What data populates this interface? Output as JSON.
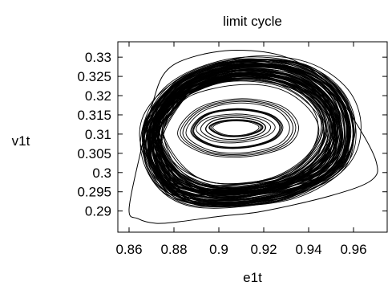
{
  "chart_data": {
    "type": "line",
    "title": "limit cycle",
    "xlabel": "e1t",
    "ylabel": "v1t",
    "xlim": [
      0.855,
      0.975
    ],
    "ylim": [
      0.2845,
      0.334
    ],
    "x_ticks": [
      0.86,
      0.88,
      0.9,
      0.92,
      0.94,
      0.96
    ],
    "x_tick_labels": [
      "0.86",
      "0.88",
      "0.9",
      "0.92",
      "0.94",
      "0.96"
    ],
    "y_ticks": [
      0.29,
      0.295,
      0.3,
      0.305,
      0.31,
      0.315,
      0.32,
      0.325,
      0.33
    ],
    "y_tick_labels": [
      "0.29",
      "0.295",
      "0.3",
      "0.305",
      "0.31",
      "0.315",
      "0.32",
      "0.325",
      "0.33"
    ],
    "grid": false,
    "series": [
      {
        "color": "#000000",
        "outer_orbit": [
          [
            0.86,
            0.2905
          ],
          [
            0.864,
            0.288
          ],
          [
            0.872,
            0.2868
          ],
          [
            0.882,
            0.2872
          ],
          [
            0.9,
            0.2886
          ],
          [
            0.92,
            0.29
          ],
          [
            0.95,
            0.294
          ],
          [
            0.968,
            0.298
          ],
          [
            0.97,
            0.303
          ],
          [
            0.961,
            0.313
          ],
          [
            0.948,
            0.3235
          ],
          [
            0.93,
            0.33
          ],
          [
            0.908,
            0.3318
          ],
          [
            0.888,
            0.33
          ],
          [
            0.876,
            0.326
          ],
          [
            0.87,
            0.317
          ],
          [
            0.865,
            0.305
          ],
          [
            0.86,
            0.2905
          ]
        ],
        "mid_orbits": [
          [
            [
              0.869,
              0.308
            ],
            [
              0.873,
              0.3
            ],
            [
              0.882,
              0.2955
            ],
            [
              0.9,
              0.294
            ],
            [
              0.925,
              0.2955
            ],
            [
              0.948,
              0.3
            ],
            [
              0.955,
              0.309
            ],
            [
              0.95,
              0.319
            ],
            [
              0.933,
              0.326
            ],
            [
              0.908,
              0.3275
            ],
            [
              0.886,
              0.3235
            ],
            [
              0.874,
              0.316
            ],
            [
              0.869,
              0.308
            ]
          ],
          [
            [
              0.868,
              0.309
            ],
            [
              0.874,
              0.299
            ],
            [
              0.885,
              0.2938
            ],
            [
              0.905,
              0.2928
            ],
            [
              0.93,
              0.295
            ],
            [
              0.95,
              0.301
            ],
            [
              0.956,
              0.31
            ],
            [
              0.951,
              0.32
            ],
            [
              0.935,
              0.3265
            ],
            [
              0.91,
              0.328
            ],
            [
              0.887,
              0.324
            ],
            [
              0.873,
              0.317
            ],
            [
              0.868,
              0.309
            ]
          ],
          [
            [
              0.87,
              0.307
            ],
            [
              0.876,
              0.2975
            ],
            [
              0.888,
              0.2925
            ],
            [
              0.908,
              0.2918
            ],
            [
              0.933,
              0.2945
            ],
            [
              0.953,
              0.302
            ],
            [
              0.958,
              0.311
            ],
            [
              0.952,
              0.3205
            ],
            [
              0.936,
              0.3268
            ],
            [
              0.912,
              0.3282
            ],
            [
              0.889,
              0.3245
            ],
            [
              0.875,
              0.3175
            ],
            [
              0.87,
              0.307
            ]
          ],
          [
            [
              0.871,
              0.31
            ],
            [
              0.878,
              0.301
            ],
            [
              0.89,
              0.296
            ],
            [
              0.906,
              0.295
            ],
            [
              0.928,
              0.297
            ],
            [
              0.944,
              0.303
            ],
            [
              0.95,
              0.311
            ],
            [
              0.945,
              0.3185
            ],
            [
              0.93,
              0.324
            ],
            [
              0.909,
              0.3255
            ],
            [
              0.888,
              0.322
            ],
            [
              0.876,
              0.316
            ],
            [
              0.871,
              0.31
            ]
          ],
          [
            [
              0.8695,
              0.306
            ],
            [
              0.875,
              0.2985
            ],
            [
              0.886,
              0.2948
            ],
            [
              0.904,
              0.2935
            ],
            [
              0.927,
              0.2958
            ],
            [
              0.947,
              0.3015
            ],
            [
              0.954,
              0.3095
            ],
            [
              0.949,
              0.3195
            ],
            [
              0.932,
              0.3258
            ],
            [
              0.907,
              0.327
            ],
            [
              0.885,
              0.323
            ],
            [
              0.8735,
              0.3155
            ],
            [
              0.8695,
              0.306
            ]
          ],
          [
            [
              0.872,
              0.311
            ],
            [
              0.879,
              0.302
            ],
            [
              0.892,
              0.297
            ],
            [
              0.908,
              0.2962
            ],
            [
              0.929,
              0.2985
            ],
            [
              0.943,
              0.3045
            ],
            [
              0.948,
              0.312
            ],
            [
              0.942,
              0.319
            ],
            [
              0.927,
              0.3235
            ],
            [
              0.906,
              0.3245
            ],
            [
              0.887,
              0.3212
            ],
            [
              0.8765,
              0.3165
            ],
            [
              0.872,
              0.311
            ]
          ]
        ],
        "inner_orbits": [
          [
            [
              0.892,
              0.311
            ],
            [
              0.899,
              0.3085
            ],
            [
              0.91,
              0.3083
            ],
            [
              0.92,
              0.3098
            ],
            [
              0.923,
              0.312
            ],
            [
              0.918,
              0.314
            ],
            [
              0.907,
              0.3148
            ],
            [
              0.896,
              0.3138
            ],
            [
              0.892,
              0.311
            ]
          ],
          [
            [
              0.888,
              0.3105
            ],
            [
              0.897,
              0.307
            ],
            [
              0.911,
              0.3065
            ],
            [
              0.924,
              0.3085
            ],
            [
              0.928,
              0.312
            ],
            [
              0.922,
              0.3152
            ],
            [
              0.908,
              0.3165
            ],
            [
              0.894,
              0.315
            ],
            [
              0.888,
              0.3105
            ]
          ],
          [
            [
              0.884,
              0.31
            ],
            [
              0.895,
              0.3055
            ],
            [
              0.912,
              0.3048
            ],
            [
              0.928,
              0.3072
            ],
            [
              0.933,
              0.312
            ],
            [
              0.926,
              0.3168
            ],
            [
              0.909,
              0.3185
            ],
            [
              0.892,
              0.3162
            ],
            [
              0.884,
              0.31
            ]
          ],
          [
            [
              0.896,
              0.3115
            ],
            [
              0.902,
              0.3096
            ],
            [
              0.911,
              0.3095
            ],
            [
              0.918,
              0.3108
            ],
            [
              0.919,
              0.3122
            ],
            [
              0.914,
              0.3134
            ],
            [
              0.906,
              0.3137
            ],
            [
              0.899,
              0.313
            ],
            [
              0.896,
              0.3115
            ]
          ]
        ]
      }
    ]
  }
}
